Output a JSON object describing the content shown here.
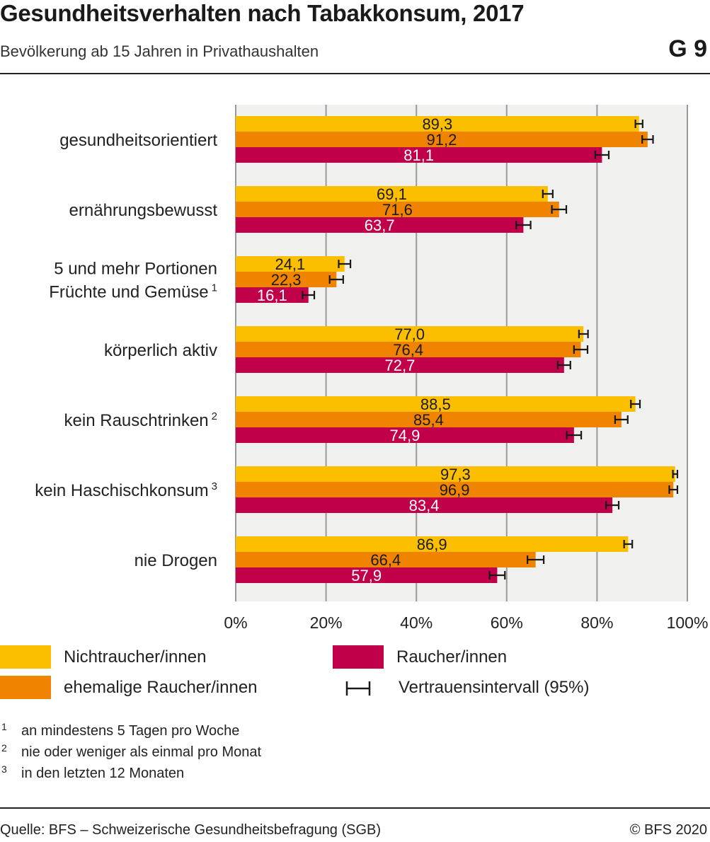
{
  "header": {
    "title": "Gesundheitsverhalten nach Tabakkonsum, 2017",
    "subtitle": "Bevölkerung ab 15 Jahren in Privathaushalten",
    "figure_id": "G 9"
  },
  "chart_data": {
    "type": "bar",
    "orientation": "horizontal",
    "title": "Gesundheitsverhalten nach Tabakkonsum, 2017",
    "subtitle": "Bevölkerung ab 15 Jahren in Privathaushalten",
    "categories": [
      {
        "label": "gesundheitsorientiert",
        "sup": ""
      },
      {
        "label": "ernährungsbewusst",
        "sup": ""
      },
      {
        "label": "5 und mehr Portionen\nFrüchte und Gemüse",
        "sup": "1"
      },
      {
        "label": "körperlich aktiv",
        "sup": ""
      },
      {
        "label": "kein Rauschtrinken",
        "sup": "2"
      },
      {
        "label": "kein Haschischkonsum",
        "sup": "3"
      },
      {
        "label": "nie Drogen",
        "sup": ""
      }
    ],
    "series": [
      {
        "name": "Nichtraucher/innen",
        "color": "#fbbf00",
        "label_color": "#1a1a1a",
        "values": [
          89.3,
          69.1,
          24.1,
          77.0,
          88.5,
          97.3,
          86.9
        ],
        "value_labels": [
          "89,3",
          "69,1",
          "24,1",
          "77,0",
          "88,5",
          "97,3",
          "86,9"
        ],
        "ci": [
          [
            88.5,
            90.1
          ],
          [
            68.0,
            70.2
          ],
          [
            22.8,
            25.4
          ],
          [
            76.0,
            78.0
          ],
          [
            87.5,
            89.5
          ],
          [
            96.8,
            97.8
          ],
          [
            86.0,
            87.8
          ]
        ]
      },
      {
        "name": "ehemalige Raucher/innen",
        "color": "#f08300",
        "label_color": "#1a1a1a",
        "values": [
          91.2,
          71.6,
          22.3,
          76.4,
          85.4,
          96.9,
          66.4
        ],
        "value_labels": [
          "91,2",
          "71,6",
          "22,3",
          "76,4",
          "85,4",
          "96,9",
          "66,4"
        ],
        "ci": [
          [
            90.0,
            92.4
          ],
          [
            70.0,
            73.2
          ],
          [
            20.8,
            23.8
          ],
          [
            74.9,
            77.9
          ],
          [
            84.0,
            86.8
          ],
          [
            96.0,
            97.8
          ],
          [
            64.6,
            68.2
          ]
        ]
      },
      {
        "name": "Raucher/innen",
        "color": "#c1004a",
        "label_color": "#ffffff",
        "values": [
          81.1,
          63.7,
          16.1,
          72.7,
          74.9,
          83.4,
          57.9
        ],
        "value_labels": [
          "81,1",
          "63,7",
          "16,1",
          "72,7",
          "74,9",
          "83,4",
          "57,9"
        ],
        "ci": [
          [
            79.6,
            82.6
          ],
          [
            62.1,
            65.3
          ],
          [
            14.8,
            17.4
          ],
          [
            71.3,
            74.1
          ],
          [
            73.3,
            76.5
          ],
          [
            82.0,
            84.8
          ],
          [
            56.2,
            59.6
          ]
        ]
      }
    ],
    "xlim": [
      0,
      100
    ],
    "x_ticks": [
      0,
      20,
      40,
      60,
      80,
      100
    ],
    "x_tick_labels": [
      "0%",
      "20%",
      "40%",
      "60%",
      "80%",
      "100%"
    ],
    "grid": true,
    "legend_position": "bottom",
    "ci_legend_label": "Vertrauensintervall (95%)",
    "colors": {
      "plot_bg": "#f0f0ee",
      "grid": "#9a9a9a",
      "error_bar": "#1a1a1a"
    }
  },
  "footnotes": [
    {
      "num": "1",
      "text": "an mindestens 5 Tagen pro Woche"
    },
    {
      "num": "2",
      "text": "nie oder weniger als einmal pro Monat"
    },
    {
      "num": "3",
      "text": "in den letzten 12 Monaten"
    }
  ],
  "footer": {
    "source": "Quelle: BFS – Schweizerische Gesundheitsbefragung (SGB)",
    "copyright": "© BFS 2020"
  }
}
